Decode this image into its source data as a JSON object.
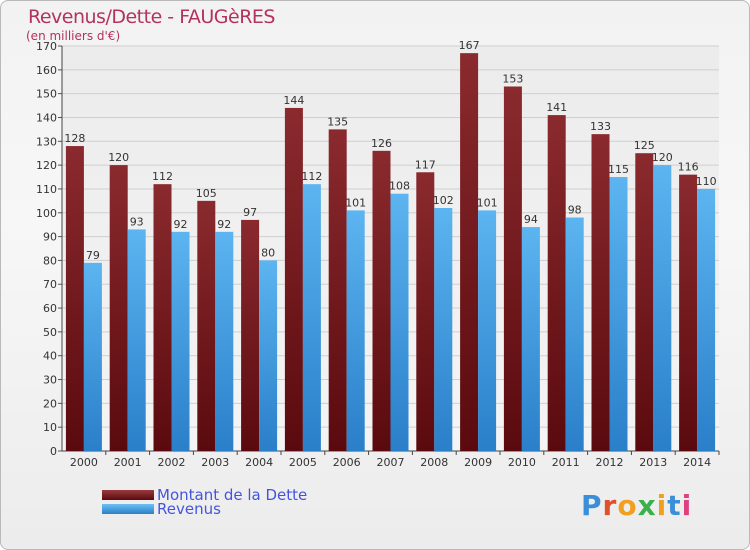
{
  "title": "Revenus/Dette - FAUGèRES",
  "subtitle": "(en milliers d'€)",
  "logo_text": "Proxiti",
  "colors": {
    "dette": "#7a1a1e",
    "revenus": "#3a9be4",
    "title": "#b3325f",
    "legend_text": "#4455dd"
  },
  "legend": [
    {
      "label": "Montant de la Dette",
      "color": "#6b1216"
    },
    {
      "label": "Revenus",
      "color": "#3a9be4"
    }
  ],
  "chart_data": {
    "type": "bar",
    "title": "Revenus/Dette - FAUGèRES",
    "subtitle": "(en milliers d'€)",
    "categories": [
      "2000",
      "2001",
      "2002",
      "2003",
      "2004",
      "2005",
      "2006",
      "2007",
      "2008",
      "2009",
      "2010",
      "2011",
      "2012",
      "2013",
      "2014"
    ],
    "series": [
      {
        "name": "Montant de la Dette",
        "values": [
          128,
          120,
          112,
          105,
          97,
          144,
          135,
          126,
          117,
          167,
          153,
          141,
          133,
          125,
          116
        ]
      },
      {
        "name": "Revenus",
        "values": [
          79,
          93,
          92,
          92,
          80,
          112,
          101,
          108,
          102,
          101,
          94,
          98,
          115,
          120,
          110
        ]
      }
    ],
    "ylim": [
      0,
      170
    ],
    "yticks": [
      0,
      10,
      20,
      30,
      40,
      50,
      60,
      70,
      80,
      90,
      100,
      110,
      120,
      130,
      140,
      150,
      160,
      170
    ],
    "grid": true,
    "legend_position": "bottom-left"
  }
}
